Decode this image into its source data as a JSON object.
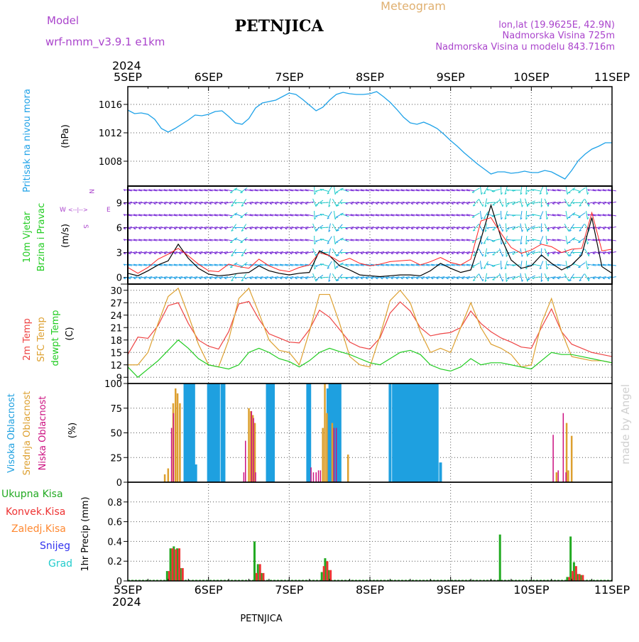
{
  "header": {
    "model_label": "Model",
    "model_name": "wrf-nmm_v3.9.1  e1km",
    "station": "PETNJICA",
    "product": "Meteogram",
    "lonlat": "lon,lat (19.9625E, 42.9N)",
    "elevation": "Nadmorska Visina 725m",
    "model_elevation": "Nadmorska Visina u modelu 843.716m",
    "footer_station": "PETNJICA",
    "watermark": "made by Angel"
  },
  "time_axis": {
    "year": "2024",
    "ticks": [
      "5SEP",
      "6SEP",
      "7SEP",
      "8SEP",
      "9SEP",
      "10SEP",
      "11SEP"
    ]
  },
  "colors": {
    "pressure": "#1fa2e8",
    "wind_speed": "#000000",
    "wind_gust": "#ff2020",
    "t2m": "#ee4444",
    "sfc": "#dda030",
    "dew": "#22cc22",
    "high_cloud": "#1ea0e0",
    "mid_cloud": "#dda030",
    "low_cloud": "#cc1080",
    "total_precip": "#22aa22",
    "conv_precip": "#ee3333",
    "frz_precip": "#ff8830",
    "snow": "#3333ee",
    "hail": "#22cccc",
    "purple_text": "#aa44cc",
    "grey_text": "#808080"
  },
  "chart_data": [
    {
      "type": "line",
      "title": "",
      "ylabel_lines": [
        "Pritisak na nivou mora",
        "(hPa)"
      ],
      "ylim": [
        1004.5,
        1018.5
      ],
      "yticks": [
        1008,
        1012,
        1016
      ],
      "x": [
        0,
        2,
        4,
        6,
        8,
        10,
        12,
        14,
        16,
        18,
        20,
        22,
        24,
        26,
        28,
        30,
        32,
        34,
        36,
        38,
        40,
        42,
        44,
        46,
        48,
        50,
        52,
        54,
        56,
        58,
        60,
        62,
        64,
        66,
        68,
        70,
        72,
        74,
        76,
        78,
        80,
        82,
        84,
        86,
        88,
        90,
        92,
        94,
        96,
        98,
        100,
        102,
        104,
        106,
        108,
        110,
        112,
        114,
        116,
        118,
        120,
        122,
        124,
        126,
        128,
        130,
        132,
        134,
        136,
        138,
        140,
        142,
        144
      ],
      "series": [
        {
          "name": "",
          "values": [
            1015.2,
            1014.7,
            1014.8,
            1014.6,
            1013.9,
            1012.6,
            1012.1,
            1012.6,
            1013.2,
            1013.8,
            1014.5,
            1014.4,
            1014.6,
            1015.0,
            1015.1,
            1014.3,
            1013.4,
            1013.2,
            1014.0,
            1015.5,
            1016.2,
            1016.4,
            1016.6,
            1017.1,
            1017.6,
            1017.4,
            1016.7,
            1015.9,
            1015.1,
            1015.6,
            1016.6,
            1017.4,
            1017.7,
            1017.5,
            1017.4,
            1017.4,
            1017.5,
            1017.8,
            1017.1,
            1016.3,
            1015.3,
            1014.2,
            1013.4,
            1013.2,
            1013.5,
            1013.1,
            1012.6,
            1011.8,
            1010.9,
            1010.1,
            1009.2,
            1008.4,
            1007.6,
            1006.9,
            1006.2,
            1006.5,
            1006.5,
            1006.3,
            1006.4,
            1006.6,
            1006.4,
            1006.4,
            1006.7,
            1006.5,
            1006.0,
            1005.5,
            1006.7,
            1008.1,
            1009.0,
            1009.7,
            1010.1,
            1010.6,
            1010.6
          ]
        }
      ]
    },
    {
      "type": "line",
      "title": "",
      "ylabel_lines": [
        "10m Vjetar",
        "Brzina i Pravac",
        "(m/s)"
      ],
      "legend": [
        "N",
        "W",
        "E",
        "S"
      ],
      "ylim": [
        -0.8,
        11
      ],
      "yticks": [
        0,
        3,
        6,
        9
      ],
      "x": [
        0,
        3,
        6,
        9,
        12,
        15,
        18,
        21,
        24,
        27,
        30,
        33,
        36,
        39,
        42,
        45,
        48,
        51,
        54,
        57,
        60,
        63,
        66,
        69,
        72,
        75,
        78,
        81,
        84,
        87,
        90,
        93,
        96,
        99,
        102,
        105,
        108,
        111,
        114,
        117,
        120,
        123,
        126,
        129,
        132,
        135,
        138,
        141,
        144
      ],
      "series": [
        {
          "name": "",
          "values": [
            0.5,
            0.2,
            0.8,
            1.5,
            2.0,
            4.0,
            2.3,
            1.1,
            0.4,
            0.2,
            0.3,
            0.5,
            0.6,
            1.4,
            0.8,
            0.5,
            0.3,
            0.5,
            0.6,
            3.2,
            2.6,
            1.4,
            0.9,
            0.3,
            0.2,
            0.1,
            0.2,
            0.3,
            0.3,
            0.2,
            0.8,
            1.7,
            1.1,
            0.6,
            0.9,
            4.6,
            8.7,
            4.8,
            2.1,
            1.1,
            1.4,
            2.7,
            1.7,
            0.9,
            1.5,
            2.7,
            7.2,
            1.3,
            0.5
          ]
        },
        {
          "name": "",
          "values": [
            1.2,
            0.5,
            1.2,
            2.2,
            2.8,
            3.5,
            2.6,
            1.6,
            0.8,
            0.7,
            1.6,
            1.3,
            1.1,
            2.2,
            1.4,
            0.9,
            0.7,
            1.2,
            1.5,
            3.0,
            2.6,
            1.9,
            2.3,
            1.7,
            1.4,
            1.6,
            1.9,
            2.0,
            2.1,
            1.5,
            1.9,
            2.4,
            1.8,
            1.5,
            2.2,
            6.8,
            7.2,
            5.3,
            3.6,
            2.9,
            3.3,
            4.0,
            3.7,
            3.0,
            3.4,
            3.5,
            7.8,
            3.2,
            3.4
          ]
        }
      ]
    },
    {
      "type": "line",
      "title": "",
      "series_labels": [
        "2m Temp",
        "SFC Temp",
        "dewpt Temp",
        "(C)"
      ],
      "ylim": [
        7.5,
        31.5
      ],
      "yticks": [
        9,
        12,
        15,
        18,
        21,
        24,
        27,
        30
      ],
      "x": [
        0,
        3,
        6,
        9,
        12,
        15,
        18,
        21,
        24,
        27,
        30,
        33,
        36,
        39,
        42,
        45,
        48,
        51,
        54,
        57,
        60,
        63,
        66,
        69,
        72,
        75,
        78,
        81,
        84,
        87,
        90,
        93,
        96,
        99,
        102,
        105,
        108,
        111,
        114,
        117,
        120,
        123,
        126,
        129,
        132,
        135,
        138,
        141,
        144
      ],
      "series": [
        {
          "name": "",
          "values": [
            14.5,
            18.7,
            18.4,
            21.5,
            26.3,
            27.0,
            22.0,
            18.0,
            16.5,
            15.8,
            20.0,
            26.7,
            27.3,
            23.0,
            19.5,
            18.5,
            17.5,
            17.3,
            20.5,
            25.2,
            23.5,
            20.5,
            17.5,
            16.3,
            15.8,
            18.5,
            24.5,
            27.2,
            25.0,
            21.0,
            19.0,
            19.5,
            19.8,
            21.0,
            25.0,
            22.0,
            20.0,
            18.5,
            17.5,
            16.3,
            16.0,
            21.0,
            25.5,
            20.0,
            17.0,
            16.0,
            15.0,
            14.5,
            14.0
          ]
        },
        {
          "name": "",
          "values": [
            12.0,
            12.0,
            15.0,
            22.0,
            28.5,
            30.5,
            24.0,
            17.0,
            12.0,
            11.5,
            18.0,
            28.0,
            30.5,
            24.5,
            18.0,
            15.5,
            15.0,
            12.0,
            20.0,
            29.0,
            29.0,
            22.0,
            14.0,
            12.0,
            11.5,
            19.0,
            27.5,
            30.0,
            27.0,
            20.0,
            15.0,
            16.0,
            15.0,
            21.0,
            27.0,
            21.0,
            17.0,
            16.0,
            14.5,
            11.5,
            12.0,
            22.0,
            28.0,
            20.0,
            14.0,
            13.5,
            13.0,
            13.0,
            12.5
          ]
        },
        {
          "name": "",
          "values": [
            11.5,
            9.0,
            11.0,
            13.0,
            15.5,
            18.0,
            16.0,
            13.5,
            12.0,
            11.5,
            11.0,
            12.0,
            15.0,
            16.0,
            15.0,
            13.5,
            12.8,
            11.5,
            13.0,
            15.0,
            16.0,
            15.2,
            14.5,
            13.5,
            12.5,
            12.0,
            13.5,
            15.0,
            15.5,
            14.5,
            12.0,
            11.0,
            10.5,
            11.5,
            13.5,
            12.0,
            12.5,
            12.5,
            12.0,
            11.5,
            11.0,
            13.0,
            15.0,
            14.5,
            14.5,
            14.0,
            13.5,
            13.0,
            12.5
          ]
        }
      ]
    },
    {
      "type": "bar",
      "title": "",
      "series_labels": [
        "Visoka Oblacnost",
        "Srednja Oblacnost",
        "Niska Oblacnost",
        "(%)"
      ],
      "ylim": [
        0,
        100
      ],
      "yticks": [
        0,
        25,
        50,
        75,
        100
      ],
      "series": [
        {
          "name": "",
          "x": [
            17,
            17.6,
            18.2,
            19,
            19.6,
            20.2,
            24,
            24.6,
            25.2,
            25.8,
            26.4,
            27,
            28,
            28.6,
            41.5,
            42.1,
            42.7,
            43.3,
            53.5,
            54.1,
            59.5,
            60.1,
            60.7,
            61.3,
            61.9,
            62.5,
            63.1,
            78,
            79,
            79.5,
            80,
            80.5,
            81,
            81.5,
            82,
            82.5,
            83,
            83.5,
            84,
            84.5,
            85,
            85.5,
            86,
            86.5,
            87,
            87.5,
            88,
            88.5,
            89,
            89.5,
            90,
            90.5,
            91,
            91.5,
            92,
            93
          ],
          "values": [
            100,
            100,
            100,
            100,
            100,
            18,
            100,
            100,
            100,
            100,
            100,
            100,
            100,
            100,
            100,
            100,
            100,
            100,
            100,
            100,
            95,
            100,
            100,
            100,
            100,
            100,
            100,
            100,
            100,
            100,
            100,
            100,
            100,
            100,
            100,
            100,
            100,
            100,
            100,
            100,
            100,
            100,
            100,
            100,
            100,
            100,
            100,
            100,
            100,
            100,
            100,
            100,
            100,
            100,
            100,
            20
          ]
        },
        {
          "name": "",
          "x": [
            11,
            12,
            13.5,
            14.2,
            14.8,
            15.5,
            36,
            36.6,
            37.2,
            37.8,
            58,
            58.6,
            59.2,
            60.8,
            65.5,
            127.5,
            130.5,
            131,
            132
          ],
          "values": [
            8,
            14,
            80,
            95,
            90,
            80,
            75,
            72,
            68,
            60,
            55,
            100,
            70,
            60,
            28,
            10,
            60,
            12,
            47
          ]
        },
        {
          "name": "",
          "x": [
            13,
            13.6,
            34.5,
            35,
            36.8,
            37.4,
            38,
            54.5,
            55.2,
            56,
            56.7,
            57.3,
            61.3,
            62,
            126.5,
            128,
            129.5,
            130.3
          ],
          "values": [
            55,
            70,
            10,
            42,
            72,
            65,
            10,
            15,
            10,
            10,
            12,
            12,
            55,
            55,
            48,
            12,
            70,
            10
          ]
        }
      ]
    },
    {
      "type": "bar",
      "title": "",
      "ylabel": "1hr Precip (mm)",
      "legend": [
        "Ukupna Kisa",
        "Konvek.Kisa",
        "Zaledj.Kisa",
        "Snijeg",
        "Grad"
      ],
      "ylim": [
        0,
        1
      ],
      "yticks": [
        0,
        0.2,
        0.4,
        0.6,
        0.8
      ],
      "series": [
        {
          "name": "",
          "x": [
            12,
            13,
            14,
            15,
            16,
            38,
            39,
            40,
            58,
            59,
            60,
            111,
            131,
            132,
            133,
            134,
            135
          ],
          "values": [
            0.1,
            0.33,
            0.35,
            0.33,
            0.13,
            0.4,
            0.17,
            0.08,
            0.09,
            0.23,
            0.11,
            0.47,
            0.04,
            0.45,
            0.19,
            0.07,
            0.06
          ]
        },
        {
          "name": "",
          "x": [
            12,
            13,
            14,
            15,
            16,
            38,
            39,
            40,
            58,
            59,
            60,
            111,
            131,
            132,
            133,
            134,
            135
          ],
          "values": [
            0.1,
            0.33,
            0.32,
            0.33,
            0.13,
            0.08,
            0.17,
            0.08,
            0.15,
            0.2,
            0.11,
            0.0,
            0.04,
            0.1,
            0.15,
            0.07,
            0.06
          ]
        }
      ]
    }
  ]
}
